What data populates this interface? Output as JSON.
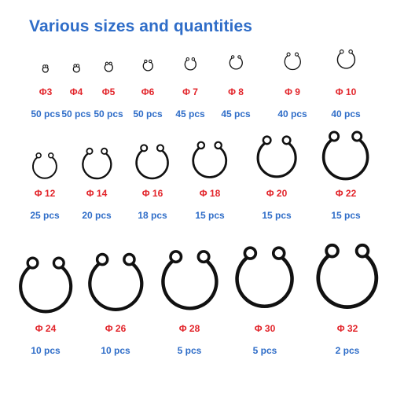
{
  "title": "Various sizes and quantities",
  "colors": {
    "title": "#2f6dc8",
    "size": "#e2242a",
    "qty": "#2f6dc8",
    "ring": "#111111"
  },
  "ring_icon": "circlip-icon",
  "items": [
    {
      "size": "Φ3",
      "qty": "50 pcs"
    },
    {
      "size": "Φ4",
      "qty": "50 pcs"
    },
    {
      "size": "Φ5",
      "qty": "50 pcs"
    },
    {
      "size": "Φ6",
      "qty": "50 pcs"
    },
    {
      "size": "Φ 7",
      "qty": "45 pcs"
    },
    {
      "size": "Φ 8",
      "qty": "45 pcs"
    },
    {
      "size": "Φ 9",
      "qty": "40 pcs"
    },
    {
      "size": "Φ 10",
      "qty": "40 pcs"
    },
    {
      "size": "Φ 12",
      "qty": "25 pcs"
    },
    {
      "size": "Φ 14",
      "qty": "20 pcs"
    },
    {
      "size": "Φ 16",
      "qty": "18 pcs"
    },
    {
      "size": "Φ 18",
      "qty": "15 pcs"
    },
    {
      "size": "Φ 20",
      "qty": "15 pcs"
    },
    {
      "size": "Φ 22",
      "qty": "15 pcs"
    },
    {
      "size": "Φ 24",
      "qty": "10 pcs"
    },
    {
      "size": "Φ 26",
      "qty": "10 pcs"
    },
    {
      "size": "Φ 28",
      "qty": "5 pcs"
    },
    {
      "size": "Φ 30",
      "qty": "5 pcs"
    },
    {
      "size": "Φ 32",
      "qty": "2  pcs"
    }
  ]
}
